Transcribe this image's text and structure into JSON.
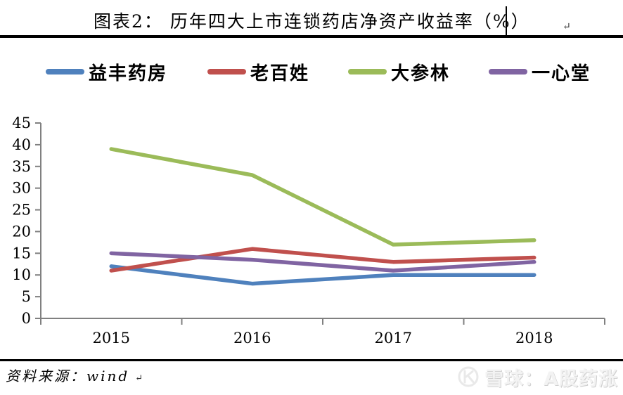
{
  "title": {
    "text": "图表2：  历年四大上市连锁药店净资产收益率（%）",
    "paragraph_mark": "↵"
  },
  "chart_data": {
    "type": "line",
    "x": [
      "2015",
      "2016",
      "2017",
      "2018"
    ],
    "series": [
      {
        "name": "益丰药房",
        "color": "#4F81BD",
        "values": [
          12,
          8,
          10,
          10
        ]
      },
      {
        "name": "老百姓",
        "color": "#C0504D",
        "values": [
          11,
          16,
          13,
          14
        ]
      },
      {
        "name": "大参林",
        "color": "#9BBB59",
        "values": [
          39,
          33,
          17,
          18
        ]
      },
      {
        "name": "一心堂",
        "color": "#8064A2",
        "values": [
          15,
          13.5,
          11,
          13
        ]
      }
    ],
    "yticks": [
      0,
      5,
      10,
      15,
      20,
      25,
      30,
      35,
      40,
      45
    ],
    "ylim": [
      0,
      45
    ],
    "xlabel": "",
    "ylabel": "",
    "grid": false,
    "legend_position": "top",
    "axis_color": "#808080",
    "line_width": 5.5
  },
  "footer": {
    "source": "资料来源：wind",
    "paragraph_mark": "↵"
  },
  "watermark": {
    "text": "雪球：A股药涨"
  }
}
